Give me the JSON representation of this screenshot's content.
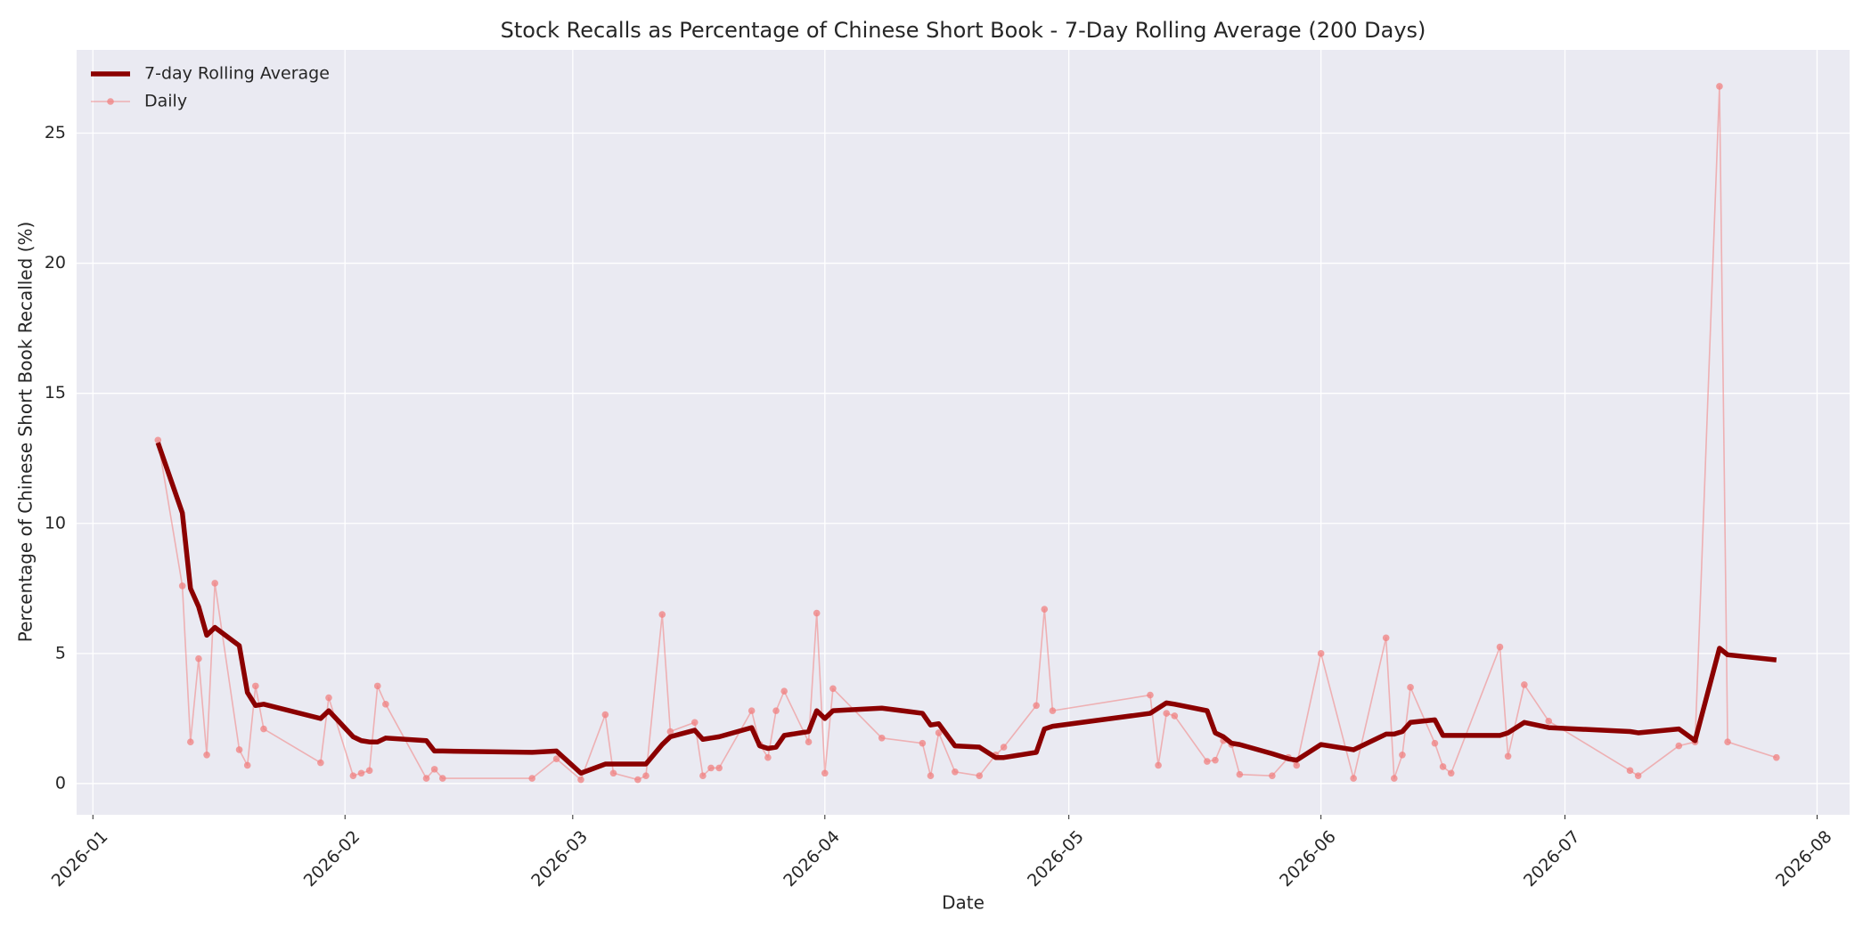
{
  "chart_data": {
    "type": "line",
    "title": "Stock Recalls as Percentage of Chinese Short Book - 7-Day Rolling Average (200 Days)",
    "xlabel": "Date",
    "ylabel": "Percentage of Chinese Short Book Recalled (%)",
    "x": [
      "2026-01-09",
      "2026-01-12",
      "2026-01-13",
      "2026-01-14",
      "2026-01-15",
      "2026-01-16",
      "2026-01-19",
      "2026-01-20",
      "2026-01-21",
      "2026-01-22",
      "2026-01-29",
      "2026-01-30",
      "2026-02-02",
      "2026-02-03",
      "2026-02-04",
      "2026-02-05",
      "2026-02-06",
      "2026-02-11",
      "2026-02-12",
      "2026-02-13",
      "2026-02-24",
      "2026-02-27",
      "2026-03-02",
      "2026-03-05",
      "2026-03-06",
      "2026-03-09",
      "2026-03-10",
      "2026-03-12",
      "2026-03-13",
      "2026-03-16",
      "2026-03-17",
      "2026-03-18",
      "2026-03-19",
      "2026-03-23",
      "2026-03-24",
      "2026-03-25",
      "2026-03-26",
      "2026-03-27",
      "2026-03-30",
      "2026-03-31",
      "2026-04-01",
      "2026-04-02",
      "2026-04-08",
      "2026-04-13",
      "2026-04-14",
      "2026-04-15",
      "2026-04-17",
      "2026-04-20",
      "2026-04-22",
      "2026-04-23",
      "2026-04-27",
      "2026-04-28",
      "2026-04-29",
      "2026-05-11",
      "2026-05-12",
      "2026-05-13",
      "2026-05-14",
      "2026-05-18",
      "2026-05-19",
      "2026-05-20",
      "2026-05-21",
      "2026-05-22",
      "2026-05-26",
      "2026-05-28",
      "2026-05-29",
      "2026-06-01",
      "2026-06-05",
      "2026-06-09",
      "2026-06-10",
      "2026-06-11",
      "2026-06-12",
      "2026-06-15",
      "2026-06-16",
      "2026-06-17",
      "2026-06-23",
      "2026-06-24",
      "2026-06-26",
      "2026-06-29",
      "2026-07-09",
      "2026-07-10",
      "2026-07-15",
      "2026-07-17",
      "2026-07-20",
      "2026-07-21",
      "2026-07-27"
    ],
    "series": [
      {
        "name": "7-day Rolling Average",
        "color": "#8b0000",
        "marker": false,
        "values": [
          13.1,
          10.4,
          7.5,
          6.8,
          5.7,
          6.0,
          5.3,
          3.5,
          3.0,
          3.05,
          2.5,
          2.8,
          1.8,
          1.65,
          1.6,
          1.6,
          1.75,
          1.65,
          1.25,
          1.25,
          1.2,
          1.25,
          0.4,
          0.75,
          0.75,
          0.75,
          0.75,
          1.5,
          1.8,
          2.05,
          1.7,
          1.75,
          1.8,
          2.15,
          1.45,
          1.35,
          1.4,
          1.85,
          2.0,
          2.8,
          2.5,
          2.8,
          2.9,
          2.7,
          2.25,
          2.3,
          1.45,
          1.4,
          1.0,
          1.0,
          1.2,
          2.1,
          2.2,
          2.7,
          2.9,
          3.1,
          3.05,
          2.8,
          1.95,
          1.8,
          1.55,
          1.5,
          1.15,
          0.95,
          0.9,
          1.5,
          1.3,
          1.9,
          1.9,
          2.0,
          2.35,
          2.45,
          1.85,
          1.85,
          1.85,
          1.95,
          2.35,
          2.15,
          2.0,
          1.95,
          2.1,
          1.65,
          5.2,
          4.95,
          4.75
        ]
      },
      {
        "name": "Daily",
        "color": "#f08080",
        "marker": true,
        "values": [
          13.2,
          7.6,
          1.6,
          4.8,
          1.1,
          7.7,
          1.3,
          0.7,
          3.75,
          2.1,
          0.8,
          3.3,
          0.3,
          0.4,
          0.5,
          3.75,
          3.05,
          0.2,
          0.55,
          0.2,
          0.2,
          0.95,
          0.15,
          2.65,
          0.4,
          0.15,
          0.3,
          6.5,
          2.0,
          2.35,
          0.3,
          0.6,
          0.6,
          2.8,
          1.5,
          1.0,
          2.8,
          3.55,
          1.6,
          6.55,
          0.4,
          3.65,
          1.75,
          1.55,
          0.3,
          1.95,
          0.45,
          0.3,
          1.1,
          1.4,
          3.0,
          6.7,
          2.8,
          3.4,
          0.7,
          2.7,
          2.6,
          0.85,
          0.9,
          1.65,
          1.5,
          0.35,
          0.3,
          1.0,
          0.7,
          5.0,
          0.2,
          5.6,
          0.2,
          1.1,
          3.7,
          1.55,
          0.65,
          0.4,
          5.25,
          1.05,
          3.8,
          2.4,
          0.5,
          0.3,
          1.45,
          1.6,
          26.8,
          1.6,
          1.0
        ]
      }
    ],
    "xlim": [
      "2025-12-30",
      "2026-08-05"
    ],
    "xticks": [
      {
        "value": "2026-01-01",
        "label": "2026-01"
      },
      {
        "value": "2026-02-01",
        "label": "2026-02"
      },
      {
        "value": "2026-03-01",
        "label": "2026-03"
      },
      {
        "value": "2026-04-01",
        "label": "2026-04"
      },
      {
        "value": "2026-05-01",
        "label": "2026-05"
      },
      {
        "value": "2026-06-01",
        "label": "2026-06"
      },
      {
        "value": "2026-07-01",
        "label": "2026-07"
      },
      {
        "value": "2026-08-01",
        "label": "2026-08"
      }
    ],
    "ylim": [
      -1.2,
      28.2
    ],
    "yticks": [
      0,
      5,
      10,
      15,
      20,
      25
    ],
    "grid": true,
    "legend": "upper left"
  }
}
